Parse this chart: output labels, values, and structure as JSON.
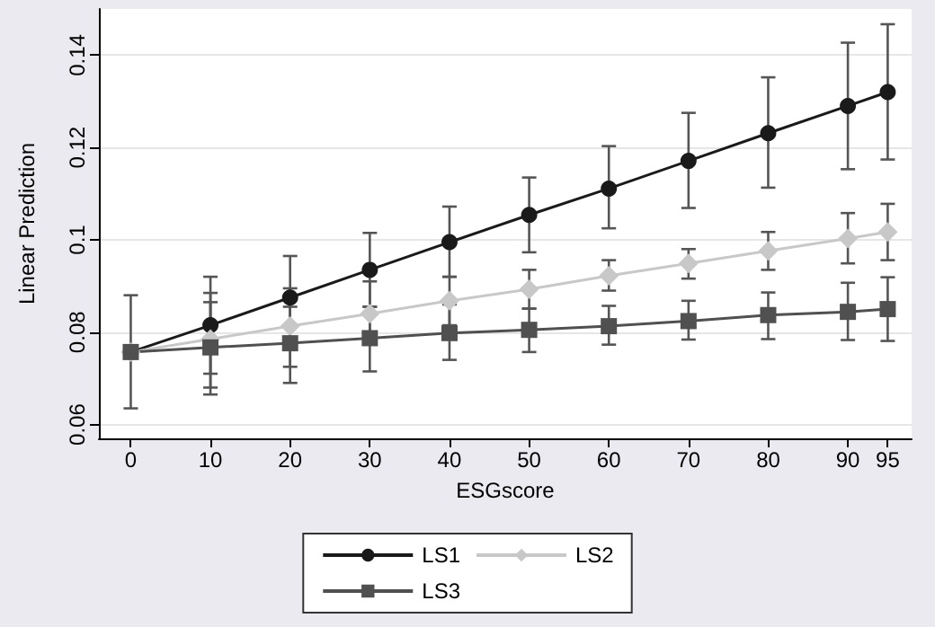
{
  "chart_data": {
    "type": "line",
    "xlabel": "ESGscore",
    "ylabel": "Linear Prediction",
    "x": [
      0,
      10,
      20,
      30,
      40,
      50,
      60,
      70,
      80,
      90,
      95
    ],
    "series": [
      {
        "name": "LS1",
        "color": "#1a1a1a",
        "marker": "circle",
        "values": [
          0.0757,
          0.0815,
          0.0875,
          0.0935,
          0.0995,
          0.1054,
          0.1111,
          0.1171,
          0.1231,
          0.129,
          0.132
        ],
        "errors": [
          null,
          [
            0.071,
            0.092
          ],
          [
            0.0785,
            0.0965
          ],
          [
            0.0855,
            0.1015
          ],
          [
            0.092,
            0.1072
          ],
          [
            0.0973,
            0.1135
          ],
          [
            0.1025,
            0.1203
          ],
          [
            0.1069,
            0.1275
          ],
          [
            0.1113,
            0.1352
          ],
          [
            0.1153,
            0.1427
          ],
          [
            0.1174,
            0.1467
          ]
        ]
      },
      {
        "name": "LS2",
        "color": "#c8c8c8",
        "marker": "diamond",
        "values": [
          0.0757,
          0.0785,
          0.0813,
          0.084,
          0.0868,
          0.0893,
          0.0922,
          0.0949,
          0.0976,
          0.1003,
          0.1017
        ],
        "errors": [
          null,
          [
            0.068,
            0.0885
          ],
          [
            0.0725,
            0.0895
          ],
          [
            0.0775,
            0.091
          ],
          [
            0.0815,
            0.092
          ],
          [
            0.0851,
            0.0935
          ],
          [
            0.089,
            0.0956
          ],
          [
            0.0916,
            0.098
          ],
          [
            0.0935,
            0.1017
          ],
          [
            0.0949,
            0.1058
          ],
          [
            0.0956,
            0.1078
          ]
        ]
      },
      {
        "name": "LS3",
        "color": "#505050",
        "marker": "square",
        "values": [
          0.0757,
          0.0767,
          0.0776,
          0.0787,
          0.0798,
          0.0805,
          0.0813,
          0.0824,
          0.0837,
          0.0844,
          0.085
        ],
        "errors": [
          [
            0.0635,
            0.088
          ],
          [
            0.0665,
            0.0865
          ],
          [
            0.069,
            0.0855
          ],
          [
            0.0715,
            0.0855
          ],
          [
            0.074,
            0.086
          ],
          [
            0.0757,
            0.0851
          ],
          [
            0.0773,
            0.0857
          ],
          [
            0.0784,
            0.0868
          ],
          [
            0.0785,
            0.0886
          ],
          [
            0.0783,
            0.0907
          ],
          [
            0.0781,
            0.0919
          ]
        ]
      }
    ],
    "xlim": [
      -4,
      98
    ],
    "xticks": [
      0,
      10,
      20,
      30,
      40,
      50,
      60,
      70,
      80,
      90,
      95
    ],
    "ylim": [
      0.057,
      0.15
    ],
    "yticks": [
      0.06,
      0.08,
      0.1,
      0.12,
      0.14
    ],
    "grid": "y",
    "legend": "bottom"
  }
}
